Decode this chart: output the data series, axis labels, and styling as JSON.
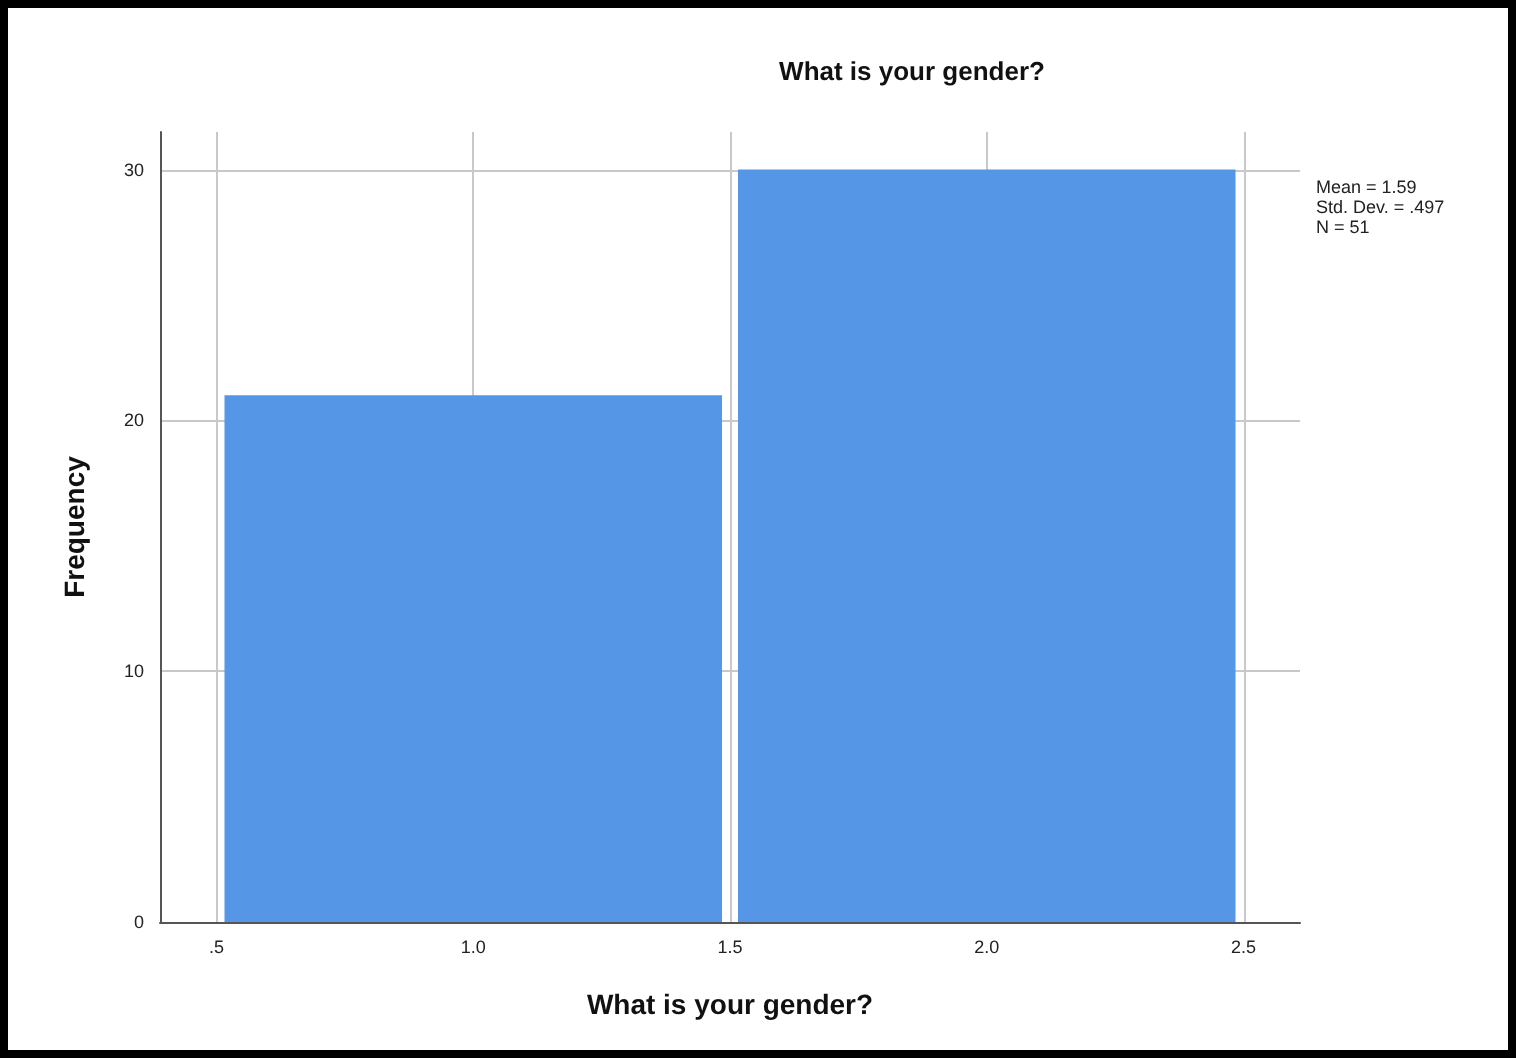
{
  "chart_data": {
    "type": "histogram",
    "title": "What is your gender?",
    "xlabel": "What is your gender?",
    "ylabel": "Frequency",
    "bins": [
      0.5,
      1.5,
      2.5
    ],
    "values": [
      21,
      30
    ],
    "color": "#5596e6",
    "xlim": [
      0.39,
      2.61
    ],
    "xticks": [
      {
        "value": 0.5,
        "label": ".5"
      },
      {
        "value": 1,
        "label": "1.0"
      },
      {
        "value": 1.5,
        "label": "1.5"
      },
      {
        "value": 2,
        "label": "2.0"
      },
      {
        "value": 2.5,
        "label": "2.5"
      }
    ],
    "ylim": [
      0,
      31.5
    ],
    "yticks": [
      0,
      10,
      20,
      30
    ],
    "grid": true,
    "annotations": [
      "Mean = 1.59",
      "Std. Dev. = .497",
      "N = 51"
    ]
  }
}
